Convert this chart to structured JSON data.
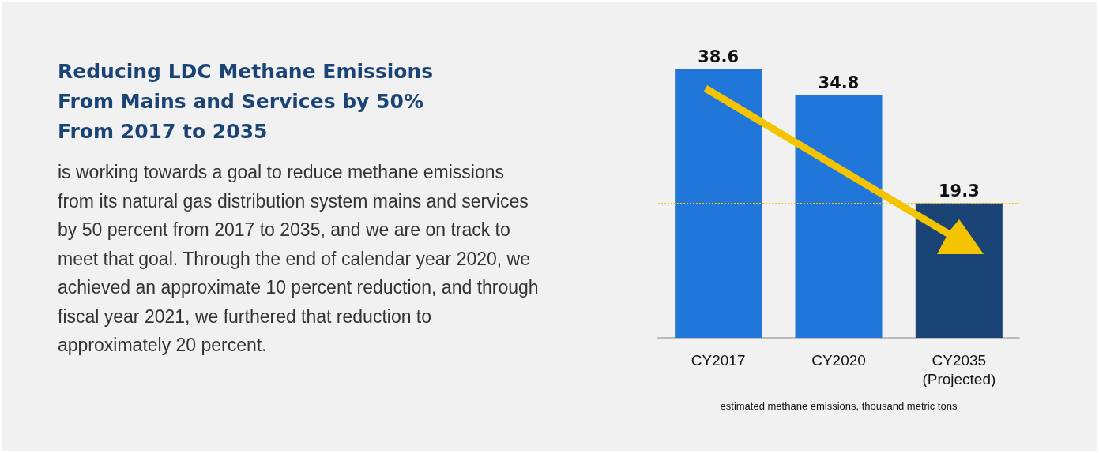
{
  "chart_data": {
    "type": "bar",
    "title": "Reducing LDC Methane Emissions From Mains and Services by 50% From 2017 to 2035",
    "annotations": [
      "is working towards a goal to reduce methane emissions from its natural gas distribution system mains and services by 50 percent from 2017 to 2035, and we are on track to meet that goal. Through the end of calendar year 2020, we achieved an approximate 10 percent reduction, and through fiscal year 2021, we furthered that reduction to approximately 20 percent."
    ],
    "categories": [
      "CY2017",
      "CY2020",
      "CY2035\n(Projected)"
    ],
    "values": [
      38.6,
      34.8,
      19.3
    ],
    "colors": [
      "#2176d9",
      "#2176d9",
      "#1b4476"
    ],
    "xlabel": "estimated methane emissions, thousand metric tons",
    "data_labels": true,
    "ref_lines": [
      {
        "axis": "y",
        "value": 19.3,
        "color": "#f5c400",
        "line_style": "dotted"
      }
    ],
    "tick_labels": "x",
    "grid": false
  }
}
